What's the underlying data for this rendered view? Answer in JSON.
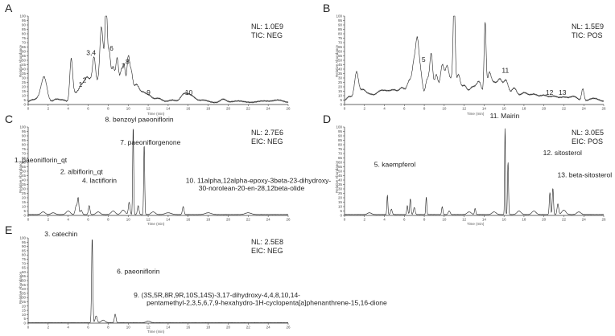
{
  "chart_data": [
    {
      "id": "A",
      "type": "line",
      "nl": "NL: 1.0E9",
      "mode": "TIC: NEG",
      "xlabel": "Time (min)",
      "ylabel": "Relative Abundance",
      "xlim": [
        0,
        26
      ],
      "ylim": [
        0,
        100
      ],
      "xticks": [
        0,
        2,
        4,
        6,
        8,
        10,
        12,
        14,
        16,
        18,
        20,
        22,
        24,
        26
      ],
      "yticks": [
        0,
        5,
        10,
        15,
        20,
        25,
        30,
        35,
        40,
        45,
        50,
        55,
        60,
        65,
        70,
        75,
        80,
        85,
        90,
        95,
        100
      ],
      "peaks": [
        [
          0.4,
          3,
          0.3
        ],
        [
          1.1,
          5,
          0.3
        ],
        [
          1.6,
          28,
          0.28
        ],
        [
          2.8,
          4,
          0.3
        ],
        [
          3.5,
          3,
          0.3
        ],
        [
          4.3,
          47,
          0.14
        ],
        [
          4.6,
          9,
          0.2
        ],
        [
          5.0,
          10,
          0.2
        ],
        [
          5.3,
          12,
          0.18
        ],
        [
          5.6,
          15,
          0.2
        ],
        [
          5.9,
          20,
          0.2
        ],
        [
          6.3,
          22,
          0.22
        ],
        [
          6.6,
          40,
          0.15
        ],
        [
          7.0,
          22,
          0.2
        ],
        [
          7.3,
          68,
          0.14
        ],
        [
          7.55,
          40,
          0.15
        ],
        [
          7.8,
          98,
          0.11
        ],
        [
          8.1,
          55,
          0.15
        ],
        [
          8.5,
          38,
          0.16
        ],
        [
          8.9,
          48,
          0.15
        ],
        [
          9.3,
          32,
          0.15
        ],
        [
          9.6,
          38,
          0.14
        ],
        [
          10.0,
          48,
          0.14
        ],
        [
          10.3,
          28,
          0.15
        ],
        [
          10.8,
          20,
          0.3
        ],
        [
          11.5,
          10,
          0.3
        ],
        [
          12.1,
          7,
          0.3
        ],
        [
          13.0,
          5,
          0.4
        ],
        [
          14.4,
          3,
          0.4
        ],
        [
          15.5,
          8,
          0.3
        ],
        [
          16.0,
          7,
          0.3
        ],
        [
          16.5,
          5,
          0.3
        ],
        [
          17.5,
          3,
          0.5
        ],
        [
          19.5,
          4,
          0.3
        ],
        [
          21.0,
          2,
          0.6
        ],
        [
          23.5,
          2,
          0.6
        ],
        [
          25.0,
          3,
          0.5
        ]
      ],
      "baseline": 2,
      "labels": [
        {
          "text": "1",
          "x": 5.2,
          "y": 20
        },
        {
          "text": "2",
          "x": 5.6,
          "y": 25
        },
        {
          "text": "3,4",
          "x": 6.3,
          "y": 56
        },
        {
          "text": "6",
          "x": 8.3,
          "y": 61
        },
        {
          "text": "7",
          "x": 9.5,
          "y": 41
        },
        {
          "text": "8",
          "x": 9.9,
          "y": 46
        },
        {
          "text": "9",
          "x": 12.0,
          "y": 11
        },
        {
          "text": "10",
          "x": 16.0,
          "y": 11
        }
      ]
    },
    {
      "id": "B",
      "type": "line",
      "nl": "NL: 1.5E9",
      "mode": "TIC: POS",
      "xlabel": "Time (min)",
      "ylabel": "Relative Abundance",
      "xlim": [
        0,
        26
      ],
      "ylim": [
        0,
        100
      ],
      "xticks": [
        0,
        2,
        4,
        6,
        8,
        10,
        12,
        14,
        16,
        18,
        20,
        22,
        24,
        26
      ],
      "yticks": [
        0,
        5,
        10,
        15,
        20,
        25,
        30,
        35,
        40,
        45,
        50,
        55,
        60,
        65,
        70,
        75,
        80,
        85,
        90,
        95,
        100
      ],
      "peaks": [
        [
          0.5,
          6,
          0.3
        ],
        [
          1.2,
          32,
          0.2
        ],
        [
          1.8,
          12,
          0.3
        ],
        [
          2.5,
          8,
          0.4
        ],
        [
          3.5,
          10,
          0.4
        ],
        [
          4.2,
          9,
          0.4
        ],
        [
          5.0,
          12,
          0.4
        ],
        [
          5.8,
          14,
          0.3
        ],
        [
          6.5,
          22,
          0.25
        ],
        [
          7.0,
          42,
          0.2
        ],
        [
          7.3,
          48,
          0.15
        ],
        [
          7.6,
          35,
          0.2
        ],
        [
          8.3,
          25,
          0.2
        ],
        [
          8.7,
          50,
          0.15
        ],
        [
          9.2,
          30,
          0.2
        ],
        [
          9.8,
          40,
          0.2
        ],
        [
          10.3,
          38,
          0.2
        ],
        [
          10.8,
          25,
          0.2
        ],
        [
          11.0,
          100,
          0.1
        ],
        [
          11.4,
          28,
          0.2
        ],
        [
          12.0,
          18,
          0.3
        ],
        [
          12.8,
          15,
          0.3
        ],
        [
          13.5,
          22,
          0.3
        ],
        [
          14.1,
          83,
          0.1
        ],
        [
          14.5,
          28,
          0.2
        ],
        [
          15.0,
          20,
          0.3
        ],
        [
          15.6,
          22,
          0.25
        ],
        [
          16.2,
          23,
          0.25
        ],
        [
          17.0,
          15,
          0.3
        ],
        [
          18.0,
          10,
          0.4
        ],
        [
          19.0,
          8,
          0.4
        ],
        [
          20.0,
          7,
          0.4
        ],
        [
          21.0,
          6,
          0.4
        ],
        [
          22.0,
          5,
          0.4
        ],
        [
          23.0,
          6,
          0.4
        ],
        [
          23.9,
          14,
          0.12
        ],
        [
          25.0,
          4,
          0.5
        ]
      ],
      "baseline": 3,
      "labels": [
        {
          "text": "5",
          "x": 7.9,
          "y": 48
        },
        {
          "text": "11",
          "x": 16.1,
          "y": 36
        },
        {
          "text": "12",
          "x": 20.5,
          "y": 11
        },
        {
          "text": "13",
          "x": 21.8,
          "y": 11
        }
      ]
    },
    {
      "id": "C",
      "type": "line",
      "nl": "NL: 2.7E6",
      "mode": "EIC: NEG",
      "xlabel": "Time (min)",
      "ylabel": "Relative Abundance",
      "xlim": [
        0,
        26
      ],
      "ylim": [
        0,
        100
      ],
      "xticks": [
        0,
        2,
        4,
        6,
        8,
        10,
        12,
        14,
        16,
        18,
        20,
        22,
        24,
        26
      ],
      "yticks": [
        0,
        5,
        10,
        15,
        20,
        25,
        30,
        35,
        40,
        45,
        50,
        55,
        60,
        65,
        70,
        75,
        80,
        85,
        90,
        95,
        100
      ],
      "peaks": [
        [
          1.5,
          3,
          0.2
        ],
        [
          2.5,
          2,
          0.2
        ],
        [
          4.0,
          4,
          0.2
        ],
        [
          4.8,
          10,
          0.1
        ],
        [
          5.0,
          18,
          0.07
        ],
        [
          5.3,
          5,
          0.1
        ],
        [
          6.1,
          10,
          0.08
        ],
        [
          7.0,
          3,
          0.2
        ],
        [
          8.5,
          4,
          0.2
        ],
        [
          9.5,
          5,
          0.2
        ],
        [
          10.1,
          14,
          0.08
        ],
        [
          10.5,
          100,
          0.05
        ],
        [
          11.0,
          10,
          0.08
        ],
        [
          11.6,
          80,
          0.05
        ],
        [
          12.5,
          3,
          0.2
        ],
        [
          14.0,
          2,
          0.3
        ],
        [
          15.5,
          9,
          0.08
        ],
        [
          18.0,
          2,
          0.3
        ],
        [
          22.0,
          2,
          0.3
        ]
      ],
      "baseline": 1,
      "labels": [
        {
          "text": "8. benzoyl paeoniflorin",
          "x": 9.3,
          "y": 106
        },
        {
          "text": "7. paeoniflorgenone",
          "x": 10.0,
          "y": 80
        },
        {
          "text": "1. paeoniflorin_qt",
          "x": 4.9,
          "y": 60
        },
        {
          "text": "2. albiflorin_qt",
          "x": 5.3,
          "y": 47
        },
        {
          "text": "4. lactiflorin",
          "x": 6.2,
          "y": 37
        },
        {
          "text": "10. 11alpha,12alpha-epoxy-3beta-23-dihydroxy-",
          "x": 15.6,
          "y": 37
        },
        {
          "text": "30-norolean-20-en-28,12beta-olide",
          "x": 15.6,
          "y": 28
        }
      ]
    },
    {
      "id": "D",
      "type": "line",
      "nl": "NL: 3.0E5",
      "mode": "EIC: POS",
      "xlabel": "Time (min)",
      "ylabel": "Relative Abundance",
      "xlim": [
        0,
        26
      ],
      "ylim": [
        0,
        100
      ],
      "xticks": [
        0,
        2,
        4,
        6,
        8,
        10,
        12,
        14,
        16,
        18,
        20,
        22,
        24,
        26
      ],
      "yticks": [
        0,
        5,
        10,
        15,
        20,
        25,
        30,
        35,
        40,
        45,
        50,
        55,
        60,
        65,
        70,
        75,
        80,
        85,
        90,
        95,
        100
      ],
      "peaks": [
        [
          2.5,
          2,
          0.2
        ],
        [
          4.3,
          22,
          0.05
        ],
        [
          4.7,
          6,
          0.08
        ],
        [
          6.3,
          10,
          0.06
        ],
        [
          6.6,
          18,
          0.06
        ],
        [
          7.0,
          8,
          0.08
        ],
        [
          8.2,
          20,
          0.05
        ],
        [
          9.8,
          9,
          0.06
        ],
        [
          10.5,
          4,
          0.1
        ],
        [
          12.5,
          3,
          0.2
        ],
        [
          13.1,
          7,
          0.06
        ],
        [
          15.0,
          3,
          0.2
        ],
        [
          16.1,
          100,
          0.04
        ],
        [
          16.4,
          60,
          0.05
        ],
        [
          17.5,
          4,
          0.2
        ],
        [
          19.0,
          4,
          0.2
        ],
        [
          20.6,
          25,
          0.06
        ],
        [
          20.9,
          30,
          0.06
        ],
        [
          21.4,
          12,
          0.08
        ],
        [
          22.0,
          5,
          0.2
        ],
        [
          23.5,
          3,
          0.2
        ]
      ],
      "baseline": 1,
      "labels": [
        {
          "text": "11. Mairin",
          "x": 16.2,
          "y": 110
        },
        {
          "text": "5. kaempferol",
          "x": 8.3,
          "y": 55
        },
        {
          "text": "12. sitosterol",
          "x": 20.4,
          "y": 68
        },
        {
          "text": "13. beta-sitosterol",
          "x": 21.2,
          "y": 43
        }
      ]
    },
    {
      "id": "E",
      "type": "line",
      "nl": "NL: 2.5E8",
      "mode": "EIC: NEG",
      "xlabel": "Time (min)",
      "ylabel": "Relative Abundance",
      "xlim": [
        0,
        26
      ],
      "ylim": [
        0,
        100
      ],
      "xticks": [
        0,
        2,
        4,
        6,
        8,
        10,
        12,
        14,
        16,
        18,
        20,
        22,
        24,
        26
      ],
      "yticks": [
        0,
        5,
        10,
        15,
        20,
        25,
        30,
        35,
        40,
        45,
        50,
        55,
        60,
        65,
        70,
        75,
        80,
        85,
        90,
        95,
        100
      ],
      "peaks": [
        [
          6.4,
          100,
          0.06
        ],
        [
          6.8,
          8,
          0.1
        ],
        [
          7.5,
          3,
          0.2
        ],
        [
          8.7,
          10,
          0.08
        ],
        [
          12.0,
          2,
          0.2
        ]
      ],
      "baseline": 0.5,
      "labels": [
        {
          "text": "3. catechin",
          "x": 6.3,
          "y": 102
        },
        {
          "text": "6. paeoniflorin",
          "x": 8.7,
          "y": 58
        },
        {
          "text": "9. (3S,5R,8R,9R,10S,14S)-3,17-dihydroxy-4,4,8,10,14-",
          "x": 12.0,
          "y": 30
        },
        {
          "text": "pentamethyl-2,3,5,6,7,9-hexahydro-1H-cyclopenta[a]phenanthrene-15,16-dione",
          "x": 12.0,
          "y": 21
        }
      ]
    }
  ]
}
